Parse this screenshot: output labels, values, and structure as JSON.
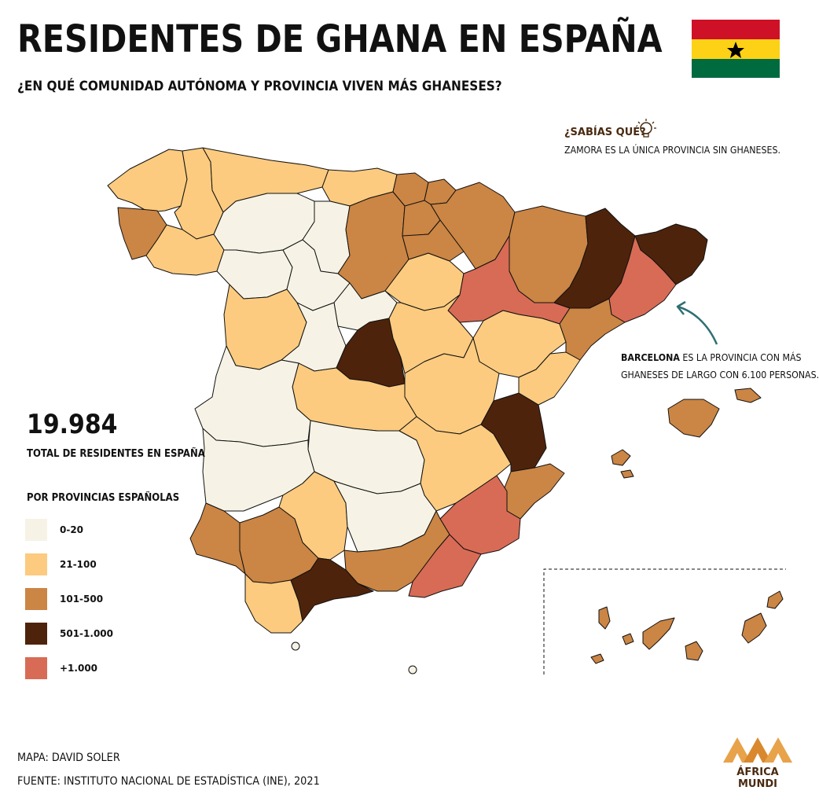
{
  "title": "RESIDENTES DE GHANA EN ESPAÑA",
  "subtitle": "¿EN QUÉ COMUNIDAD AUTÓNOMA Y PROVINCIA VIVEN MÁS GHANESES?",
  "fact": {
    "title": "¿SABÍAS QUÉ?",
    "text": "ZAMORA ES LA ÚNICA PROVINCIA SIN GHANESES."
  },
  "callout": {
    "bold": "BARCELONA",
    "line1_rest": " ES LA PROVINCIA CON MÁS",
    "line2": "GHANESES DE LARGO CON 6.100 PERSONAS."
  },
  "total": {
    "value": "19.984",
    "label": "TOTAL DE RESIDENTES EN ESPAÑA"
  },
  "legend": {
    "title": "POR PROVINCIAS ESPAÑOLAS",
    "items": [
      {
        "label": "0-20",
        "color": "#f6f3e6"
      },
      {
        "label": "21-100",
        "color": "#fccb7f"
      },
      {
        "label": "101-500",
        "color": "#cb8544"
      },
      {
        "label": "501-1.000",
        "color": "#4e230c"
      },
      {
        "label": "+1.000",
        "color": "#d86b55"
      }
    ]
  },
  "credit": "MAPA: DAVID SOLER",
  "source": "FUENTE: INSTITUTO NACIONAL DE ESTADÍSTICA (INE), 2021",
  "logo": {
    "line1": "ÁFRICA",
    "line2": "MUNDI"
  },
  "colors": {
    "flag_red": "#ce1126",
    "flag_yellow": "#fcd116",
    "flag_green": "#006b3f",
    "arrow": "#2f6f73"
  }
}
